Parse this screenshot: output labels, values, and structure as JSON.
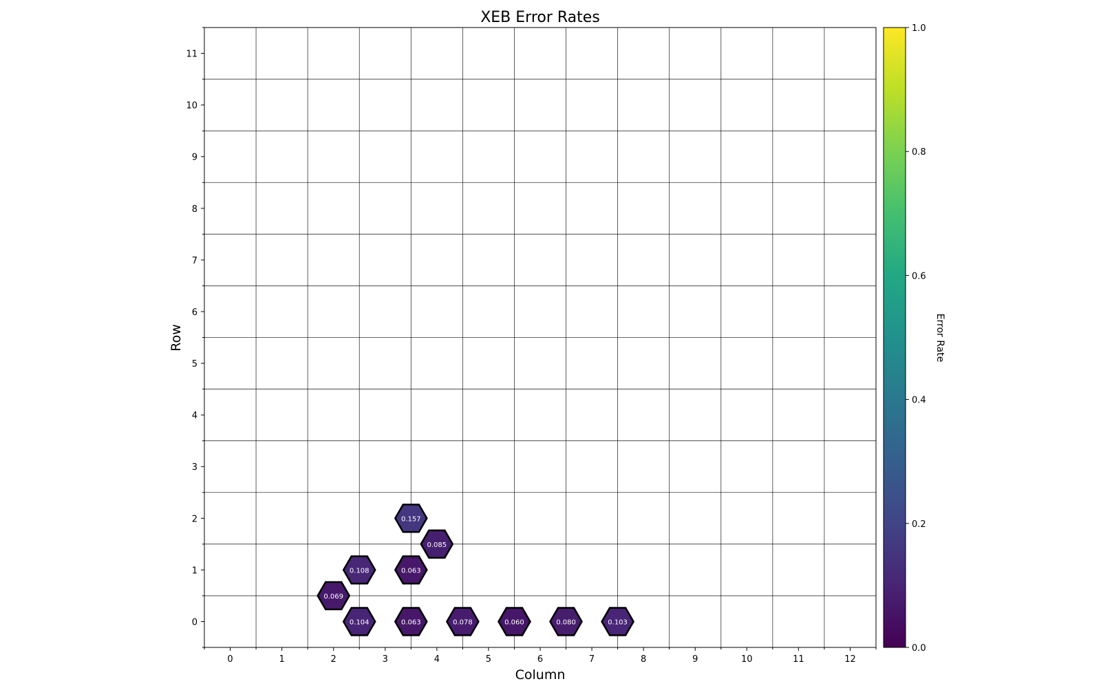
{
  "chart_data": {
    "type": "heatmap",
    "title": "XEB Error Rates",
    "xlabel": "Column",
    "ylabel": "Row",
    "xlim": [
      -0.5,
      12.5
    ],
    "ylim": [
      -0.5,
      11.5
    ],
    "x_ticks": [
      0,
      1,
      2,
      3,
      4,
      5,
      6,
      7,
      8,
      9,
      10,
      11,
      12
    ],
    "y_ticks": [
      0,
      1,
      2,
      3,
      4,
      5,
      6,
      7,
      8,
      9,
      10,
      11
    ],
    "grid": true,
    "colormap": "viridis",
    "colorbar": {
      "label": "Error Rate",
      "range": [
        0.0,
        1.0
      ],
      "ticks": [
        "0.0",
        "0.2",
        "0.4",
        "0.6",
        "0.8",
        "1.0"
      ],
      "tick_values": [
        0.0,
        0.2,
        0.4,
        0.6,
        0.8,
        1.0
      ]
    },
    "points": [
      {
        "x": 3.5,
        "y": 2.0,
        "value": 0.157,
        "label": "0.157"
      },
      {
        "x": 4.0,
        "y": 1.5,
        "value": 0.085,
        "label": "0.085"
      },
      {
        "x": 2.5,
        "y": 1.0,
        "value": 0.108,
        "label": "0.108"
      },
      {
        "x": 3.5,
        "y": 1.0,
        "value": 0.063,
        "label": "0.063"
      },
      {
        "x": 2.0,
        "y": 0.5,
        "value": 0.069,
        "label": "0.069"
      },
      {
        "x": 2.5,
        "y": 0.0,
        "value": 0.104,
        "label": "0.104"
      },
      {
        "x": 3.5,
        "y": 0.0,
        "value": 0.063,
        "label": "0.063"
      },
      {
        "x": 4.5,
        "y": 0.0,
        "value": 0.078,
        "label": "0.078"
      },
      {
        "x": 5.5,
        "y": 0.0,
        "value": 0.06,
        "label": "0.060"
      },
      {
        "x": 6.5,
        "y": 0.0,
        "value": 0.08,
        "label": "0.080"
      },
      {
        "x": 7.5,
        "y": 0.0,
        "value": 0.103,
        "label": "0.103"
      }
    ]
  }
}
